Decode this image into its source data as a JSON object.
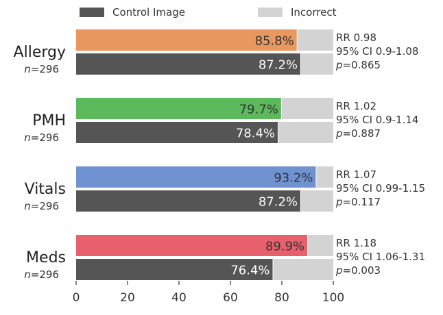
{
  "chart_data": {
    "type": "bar",
    "orientation": "horizontal",
    "stacked_to": 100,
    "xlim": [
      0,
      100
    ],
    "xticks": [
      0,
      20,
      40,
      60,
      80,
      100
    ],
    "legend": [
      {
        "label": "Control Image",
        "color": "#555555"
      },
      {
        "label": "Incorrect",
        "color": "#d3d3d3"
      }
    ],
    "remainder_color": "#d3d3d3",
    "control_color": "#555555",
    "groups": [
      {
        "name": "Allergy",
        "n_label": "n=296",
        "color": "#e8975f",
        "test_value": 85.8,
        "test_label": "85.8%",
        "control_value": 87.2,
        "control_label": "87.2%",
        "stats": [
          "RR 0.98",
          "95% CI 0.9-1.08",
          "p=0.865"
        ]
      },
      {
        "name": "PMH",
        "n_label": "n=296",
        "color": "#5cba5c",
        "test_value": 79.7,
        "test_label": "79.7%",
        "control_value": 78.4,
        "control_label": "78.4%",
        "stats": [
          "RR 1.02",
          "95% CI 0.9-1.14",
          "p=0.887"
        ]
      },
      {
        "name": "Vitals",
        "n_label": "n=296",
        "color": "#7192d0",
        "test_value": 93.2,
        "test_label": "93.2%",
        "control_value": 87.2,
        "control_label": "87.2%",
        "stats": [
          "RR 1.07",
          "95% CI 0.99-1.15",
          "p=0.117"
        ]
      },
      {
        "name": "Meds",
        "n_label": "n=296",
        "color": "#e8606c",
        "test_value": 89.9,
        "test_label": "89.9%",
        "control_value": 76.4,
        "control_label": "76.4%",
        "stats": [
          "RR 1.18",
          "95% CI 1.06-1.31",
          "p=0.003"
        ]
      }
    ]
  }
}
